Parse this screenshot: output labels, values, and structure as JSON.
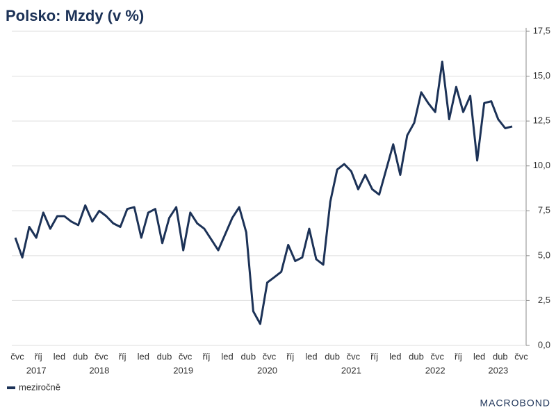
{
  "chart_data": {
    "type": "line",
    "title": "Polsko: Mzdy (v %)",
    "source": "MACROBOND",
    "categories": [
      "čvc",
      null,
      null,
      "říj",
      null,
      null,
      "led",
      null,
      null,
      "dub",
      null,
      null,
      "čvc",
      null,
      null,
      "říj",
      null,
      null,
      "led",
      null,
      null,
      "dub",
      null,
      null,
      "čvc",
      null,
      null,
      "říj",
      null,
      null,
      "led",
      null,
      null,
      "dub",
      null,
      null,
      "čvc",
      null,
      null,
      "říj",
      null,
      null,
      "led",
      null,
      null,
      "dub",
      null,
      null,
      "čvc",
      null,
      null,
      "říj",
      null,
      null,
      "led",
      null,
      null,
      "dub",
      null,
      null,
      "čvc",
      null,
      null,
      "říj",
      null,
      null,
      "led",
      null,
      null,
      "dub",
      null,
      null,
      "čvc"
    ],
    "years": [
      null,
      null,
      null,
      "2017",
      null,
      null,
      null,
      null,
      null,
      null,
      null,
      null,
      "2018",
      null,
      null,
      null,
      null,
      null,
      null,
      null,
      null,
      null,
      null,
      null,
      "2019",
      null,
      null,
      null,
      null,
      null,
      null,
      null,
      null,
      null,
      null,
      null,
      "2020",
      null,
      null,
      null,
      null,
      null,
      null,
      null,
      null,
      null,
      null,
      null,
      "2021",
      null,
      null,
      null,
      null,
      null,
      null,
      null,
      null,
      null,
      null,
      null,
      "2022",
      null,
      null,
      null,
      null,
      null,
      null,
      null,
      null,
      "2023",
      null,
      null,
      null
    ],
    "series": [
      {
        "name": "meziročně",
        "color": "#1c3257",
        "values": [
          6.0,
          4.9,
          6.6,
          6.0,
          7.4,
          6.5,
          7.2,
          7.2,
          6.9,
          6.7,
          7.8,
          6.9,
          7.5,
          7.2,
          6.8,
          6.6,
          7.6,
          7.7,
          6.0,
          7.4,
          7.6,
          5.7,
          7.1,
          7.7,
          5.3,
          7.4,
          6.8,
          6.5,
          5.9,
          5.3,
          6.2,
          7.1,
          7.7,
          6.3,
          1.9,
          1.2,
          3.5,
          3.8,
          4.1,
          5.6,
          4.7,
          4.9,
          6.5,
          4.8,
          4.5,
          8.0,
          9.8,
          10.1,
          9.7,
          8.7,
          9.5,
          8.7,
          8.4,
          9.8,
          11.2,
          9.5,
          11.7,
          12.4,
          14.1,
          13.5,
          13.0,
          15.8,
          12.6,
          14.4,
          13.0,
          13.9,
          10.3,
          13.5,
          13.6,
          12.6,
          12.1,
          12.2,
          null
        ]
      }
    ],
    "ylim": [
      0,
      17.5
    ],
    "yticks": [
      {
        "value": 0,
        "label": "0,0"
      },
      {
        "value": 2.5,
        "label": "2,5"
      },
      {
        "value": 5,
        "label": "5,0"
      },
      {
        "value": 7.5,
        "label": "7,5"
      },
      {
        "value": 10,
        "label": "10,0"
      },
      {
        "value": 12.5,
        "label": "12,5"
      },
      {
        "value": 15,
        "label": "15,0"
      },
      {
        "value": 17.5,
        "label": "17,5"
      }
    ],
    "grid": true
  }
}
